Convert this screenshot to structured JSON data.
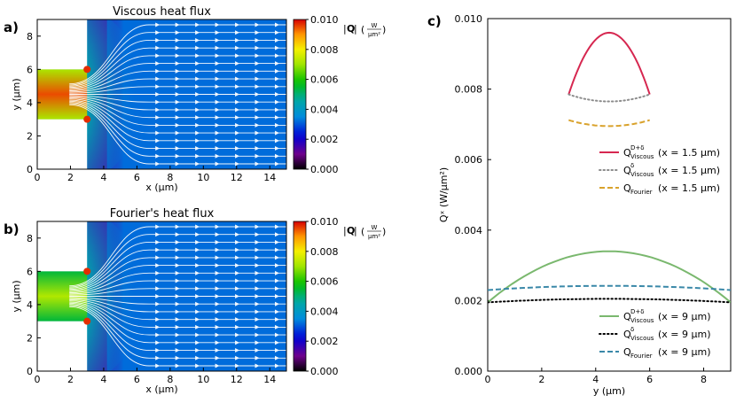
{
  "chart_data": [
    {
      "type": "heatmap",
      "panel": "a)",
      "title": "Viscous heat flux",
      "xlabel": "x (μm)",
      "ylabel": "y (μm)",
      "xlim": [
        0,
        15
      ],
      "ylim": [
        0,
        9
      ],
      "xticks": [
        0,
        2,
        4,
        6,
        8,
        10,
        12,
        14
      ],
      "yticks": [
        0,
        2,
        4,
        6,
        8
      ],
      "colorbar": {
        "label": "|Q|",
        "unit_num": "W",
        "unit_den": "μm²",
        "range": [
          0,
          0.01
        ],
        "ticks": [
          "0.000",
          "0.002",
          "0.004",
          "0.006",
          "0.008",
          "0.010"
        ]
      },
      "channel_inlet_y": [
        3,
        6
      ],
      "inlet_x": 3,
      "inlet_value": 0.0095
    },
    {
      "type": "heatmap",
      "panel": "b)",
      "title": "Fourier's heat flux",
      "xlabel": "x (μm)",
      "ylabel": "y (μm)",
      "xlim": [
        0,
        15
      ],
      "ylim": [
        0,
        9
      ],
      "xticks": [
        0,
        2,
        4,
        6,
        8,
        10,
        12,
        14
      ],
      "yticks": [
        0,
        2,
        4,
        6,
        8
      ],
      "colorbar": {
        "label": "|Q|",
        "unit_num": "W",
        "unit_den": "μm²",
        "range": [
          0,
          0.01
        ],
        "ticks": [
          "0.000",
          "0.002",
          "0.004",
          "0.006",
          "0.008",
          "0.010"
        ]
      },
      "channel_inlet_y": [
        3,
        6
      ],
      "inlet_x": 3,
      "inlet_value": 0.0072
    },
    {
      "type": "line",
      "panel": "c)",
      "xlabel": "y (μm)",
      "ylabel": "Qˣ (W/μm²)",
      "xlim": [
        0,
        9
      ],
      "ylim": [
        0,
        0.01
      ],
      "xticks": [
        0,
        2,
        4,
        6,
        8
      ],
      "yticks": [
        "0.000",
        "0.002",
        "0.004",
        "0.006",
        "0.008",
        "0.010"
      ],
      "series": [
        {
          "name": "Q_Viscous^(D+δ) (x = 1.5 μm)",
          "color": "#d62750",
          "dash": "solid",
          "y_range": [
            3,
            6
          ],
          "values": [
            0.00785,
            0.0096,
            0.00785
          ]
        },
        {
          "name": "Q_Viscous^δ (x = 1.5 μm)",
          "color": "#8c8c8c",
          "dash": "dot",
          "y_range": [
            3,
            6
          ],
          "values": [
            0.00785,
            0.00765,
            0.00785
          ]
        },
        {
          "name": "Q_Fourier (x = 1.5 μm)",
          "color": "#d9a22c",
          "dash": "dash",
          "y_range": [
            3,
            6
          ],
          "values": [
            0.00712,
            0.00695,
            0.00712
          ]
        },
        {
          "name": "Q_Viscous^(D+δ) (x = 9 μm)",
          "color": "#7ab86e",
          "dash": "solid",
          "y_range": [
            0,
            9
          ],
          "values": [
            0.00195,
            0.0034,
            0.00195
          ]
        },
        {
          "name": "Q_Viscous^δ (x = 9 μm)",
          "color": "#000000",
          "dash": "dot",
          "y_range": [
            0,
            9
          ],
          "values": [
            0.00195,
            0.00205,
            0.00195
          ]
        },
        {
          "name": "Q_Fourier (x = 9 μm)",
          "color": "#3a88a8",
          "dash": "dash",
          "y_range": [
            0,
            9
          ],
          "values": [
            0.0023,
            0.00242,
            0.0023
          ]
        }
      ],
      "legend": [
        {
          "position": "upper",
          "entries": [
            {
              "base": "Q",
              "sup": "D+δ",
              "sub": "Viscous",
              "cond": "(x = 1.5 μm)",
              "series": 0
            },
            {
              "base": "Q",
              "sup": "δ",
              "sub": "Viscous",
              "cond": "(x = 1.5 μm)",
              "series": 1
            },
            {
              "base": "Q",
              "sup": "",
              "sub": "Fourier",
              "cond": "(x = 1.5 μm)",
              "series": 2
            }
          ]
        },
        {
          "position": "lower",
          "entries": [
            {
              "base": "Q",
              "sup": "D+δ",
              "sub": "Viscous",
              "cond": "(x = 9 μm)",
              "series": 3
            },
            {
              "base": "Q",
              "sup": "δ",
              "sub": "Viscous",
              "cond": "(x = 9 μm)",
              "series": 4
            },
            {
              "base": "Q",
              "sup": "",
              "sub": "Fourier",
              "cond": "(x = 9 μm)",
              "series": 5
            }
          ]
        }
      ]
    }
  ]
}
